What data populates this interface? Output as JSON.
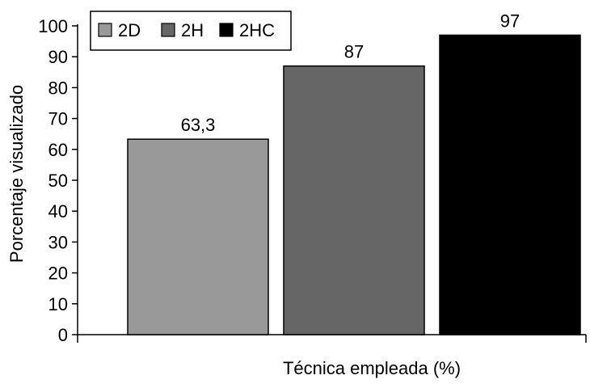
{
  "chart_data": {
    "type": "bar",
    "categories": [
      "2D",
      "2H",
      "2HC"
    ],
    "values": [
      63.3,
      87,
      97
    ],
    "data_labels": [
      "63,3",
      "87",
      "97"
    ],
    "xlabel": "Técnica empleada (%)",
    "ylabel": "Porcentaje visualizado",
    "ylim": [
      0,
      100
    ],
    "yticks": [
      0,
      10,
      20,
      30,
      40,
      50,
      60,
      70,
      80,
      90,
      100
    ],
    "grid": false,
    "legend_position": "top-left",
    "legend": [
      {
        "label": "2D",
        "color": "#999999"
      },
      {
        "label": "2H",
        "color": "#666666"
      },
      {
        "label": "2HC",
        "color": "#000000"
      }
    ],
    "colors": [
      "#999999",
      "#666666",
      "#000000"
    ]
  }
}
